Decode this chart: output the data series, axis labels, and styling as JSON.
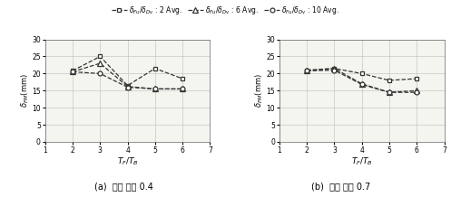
{
  "x": [
    2,
    3,
    4,
    5,
    6
  ],
  "panel_a": {
    "series_2avg": [
      20.8,
      25.0,
      16.5,
      21.5,
      18.5
    ],
    "series_6avg": [
      20.5,
      23.0,
      16.2,
      15.5,
      15.5
    ],
    "series_10avg": [
      20.5,
      20.0,
      16.0,
      15.5,
      15.5
    ],
    "xlabel": "$T_F/T_B$",
    "ylabel": "$\\delta_{FM}$(mm)",
    "title": "(a)  내력 비율 0.4",
    "xlim": [
      1,
      7
    ],
    "ylim": [
      0,
      30
    ]
  },
  "panel_b": {
    "series_2avg": [
      21.0,
      21.5,
      20.0,
      18.0,
      18.5
    ],
    "series_6avg": [
      20.8,
      21.5,
      17.0,
      14.5,
      15.0
    ],
    "series_10avg": [
      20.8,
      21.0,
      16.8,
      14.5,
      14.5
    ],
    "xlabel": "$T_F/T_B$",
    "ylabel": "$\\delta_{FM}$(mm)",
    "title": "(b)  내력 비율 0.7",
    "xlim": [
      1,
      7
    ],
    "ylim": [
      0,
      30
    ]
  },
  "legend": {
    "label_2avg": "$\\delta_{Fu}/\\delta_{Dv}$ : 2 Avg.",
    "label_6avg": "$\\delta_{Fu}/\\delta_{Dv}$ : 6 Avg.",
    "label_10avg": "$\\delta_{Fu}/\\delta_{Dv}$ : 10 Avg."
  },
  "yticks": [
    0,
    5,
    10,
    15,
    20,
    25,
    30
  ],
  "xticks": [
    1,
    2,
    3,
    4,
    5,
    6,
    7
  ],
  "color": "#333333",
  "linestyle": "--",
  "marker_2avg": "s",
  "marker_6avg": "^",
  "marker_10avg": "o",
  "bg_color": "#f5f5f0"
}
